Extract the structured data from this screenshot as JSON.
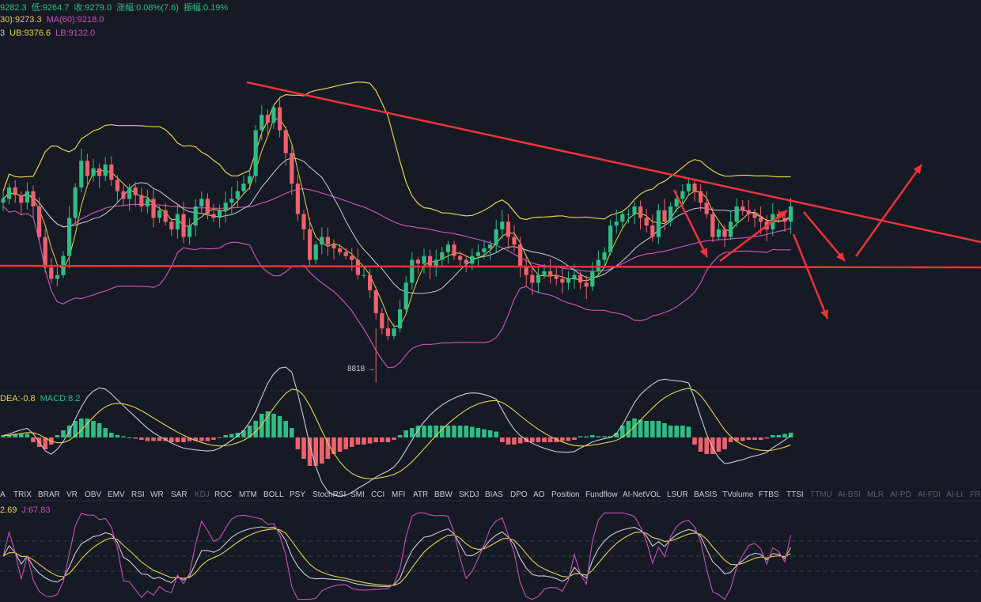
{
  "info": {
    "line1": [
      {
        "text": "9282.3",
        "color": "#2fbd85"
      },
      {
        "text": "低:9264.7",
        "color": "#2fbd85"
      },
      {
        "text": "收:9279.0",
        "color": "#2fbd85"
      },
      {
        "text": "涨幅:0.08%(7.6)",
        "color": "#2fbd85"
      },
      {
        "text": "振幅:0.19%",
        "color": "#2fbd85"
      }
    ],
    "line2": [
      {
        "text": "30):9273.3",
        "color": "#e6d24a"
      },
      {
        "text": "MA(60):9218.0",
        "color": "#c94fb7"
      }
    ],
    "line3": [
      {
        "text": "3",
        "color": "#c8ccd6"
      },
      {
        "text": "UB:9376.6",
        "color": "#e6d24a"
      },
      {
        "text": "LB:9132.0",
        "color": "#c94fb7"
      }
    ]
  },
  "annotation_low": "8818 →",
  "macd_info": [
    {
      "text": "DEA:-0.8",
      "color": "#e6d24a"
    },
    {
      "text": "MACD:8.2",
      "color": "#2fbd85"
    }
  ],
  "kdj_info": [
    {
      "text": "2.69",
      "color": "#e6d24a"
    },
    {
      "text": "J:67.83",
      "color": "#c94fb7"
    }
  ],
  "tabs": [
    "A",
    "TRIX",
    "BRAR",
    "VR",
    "OBV",
    "EMV",
    "RSI",
    "WR",
    "SAR",
    "KDJ",
    "ROC",
    "MTM",
    "BOLL",
    "PSY",
    "StochRSI",
    "SMI",
    "CCI",
    "MFI",
    "ATR",
    "BBW",
    "SKDJ",
    "BIAS",
    "DPO",
    "AO",
    "Position",
    "Fundflow",
    "AI-NetVOL",
    "LSUR",
    "BASIS",
    "TVolume",
    "FTBS",
    "TTSI",
    "TTMU",
    "AI-BSI",
    "MLR",
    "AI-PD",
    "AI-FDI",
    "AI-LI",
    "FR"
  ],
  "tabs_dim": [
    "KDJ",
    "TTMU",
    "AI-BSI",
    "MLR",
    "AI-PD",
    "AI-FDI",
    "AI-LI",
    "FR"
  ],
  "colors": {
    "background": "#161a25",
    "up": "#2fbd85",
    "down": "#f0616d",
    "ma_white": "#c9ccd6",
    "ma_yellow": "#e6d24a",
    "ma_purple": "#c94fb7",
    "trendline": "#f0323a"
  },
  "chart_data": {
    "type": "candlestick",
    "close": [
      9300,
      9330,
      9310,
      9290,
      9320,
      9280,
      9200,
      9120,
      9090,
      9100,
      9150,
      9250,
      9330,
      9400,
      9360,
      9380,
      9360,
      9390,
      9350,
      9320,
      9300,
      9330,
      9310,
      9280,
      9300,
      9250,
      9270,
      9240,
      9220,
      9260,
      9200,
      9230,
      9280,
      9300,
      9260,
      9250,
      9270,
      9290,
      9300,
      9320,
      9340,
      9360,
      9480,
      9520,
      9500,
      9540,
      9480,
      9420,
      9340,
      9260,
      9220,
      9140,
      9180,
      9200,
      9180,
      9170,
      9160,
      9150,
      9140,
      9100,
      9100,
      9060,
      9000,
      8960,
      8940,
      8960,
      9010,
      9080,
      9140,
      9130,
      9150,
      9120,
      9140,
      9160,
      9180,
      9150,
      9140,
      9130,
      9150,
      9160,
      9170,
      9180,
      9220,
      9240,
      9200,
      9180,
      9120,
      9100,
      9080,
      9100,
      9110,
      9100,
      9090,
      9080,
      9090,
      9100,
      9080,
      9070,
      9110,
      9140,
      9160,
      9230,
      9240,
      9260,
      9260,
      9280,
      9250,
      9230,
      9200,
      9270,
      9240,
      9280,
      9300,
      9320,
      9340,
      9320,
      9290,
      9260,
      9200,
      9220,
      9200,
      9240,
      9280,
      9270,
      9260,
      9250,
      9240,
      9220,
      9260,
      9250,
      9240,
      9280
    ],
    "lows": [
      {
        "value": 8818,
        "label": "8818"
      }
    ],
    "indicator_values": {
      "MA30": 9273.3,
      "MA60": 9218.0,
      "BOLL_UB": 9376.6,
      "BOLL_LB": 9132.0,
      "DEA": -0.8,
      "MACD": 8.2,
      "J": 67.83
    },
    "macd_hist": [
      2,
      2,
      3,
      3,
      3,
      -4,
      -8,
      -10,
      -6,
      2,
      6,
      10,
      14,
      16,
      16,
      14,
      12,
      8,
      4,
      2,
      1,
      0,
      -1,
      -2,
      -3,
      -3,
      -3,
      -3,
      -4,
      -4,
      -4,
      -3,
      -3,
      -3,
      -3,
      -2,
      0,
      2,
      3,
      4,
      6,
      10,
      14,
      20,
      22,
      20,
      18,
      14,
      8,
      -10,
      -18,
      -24,
      -24,
      -22,
      -18,
      -14,
      -12,
      -10,
      -8,
      -6,
      -6,
      -5,
      -4,
      -4,
      -4,
      -2,
      2,
      6,
      8,
      10,
      10,
      10,
      10,
      10,
      10,
      10,
      10,
      10,
      9,
      8,
      7,
      6,
      5,
      -4,
      -6,
      -6,
      -5,
      -4,
      -4,
      -4,
      -4,
      -4,
      -4,
      -3,
      -3,
      -2,
      1,
      1,
      2,
      1,
      1,
      1,
      4,
      10,
      14,
      16,
      15,
      14,
      14,
      14,
      12,
      10,
      10,
      10,
      9,
      -6,
      -12,
      -14,
      -14,
      -12,
      -10,
      -4,
      -3,
      -3,
      -2,
      -2,
      -2,
      -1,
      2,
      2,
      3,
      4
    ],
    "macd_lines": {
      "DIF_end": 8.2,
      "DEA_end": -0.8
    },
    "kdj": {
      "J_end": 67.83
    }
  }
}
